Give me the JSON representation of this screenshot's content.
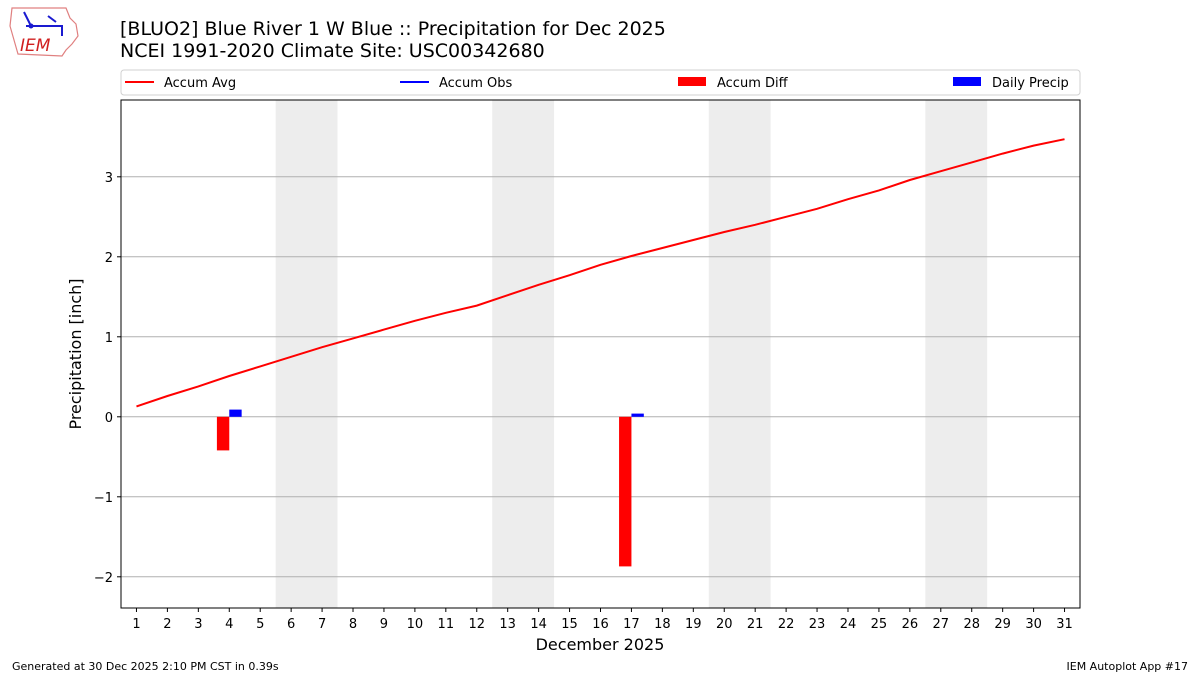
{
  "logo_text": "IEM",
  "footer": {
    "left": "Generated at 30 Dec 2025 2:10 PM CST in 0.39s",
    "right": "IEM Autoplot App #17"
  },
  "chart_data": {
    "type": "bar",
    "title": "[BLUO2] Blue River 1 W Blue :: Precipitation for Dec 2025",
    "subtitle": "NCEI 1991-2020 Climate Site: USC00342680",
    "xlabel": "December 2025",
    "ylabel": "Precipitation [inch]",
    "xlim": [
      0.5,
      31.5
    ],
    "ylim": [
      -2.39,
      3.96
    ],
    "yticks": [
      -2,
      -1,
      0,
      1,
      2,
      3
    ],
    "ytick_labels": [
      "−2",
      "−1",
      "0",
      "1",
      "2",
      "3"
    ],
    "x": [
      1,
      2,
      3,
      4,
      5,
      6,
      7,
      8,
      9,
      10,
      11,
      12,
      13,
      14,
      15,
      16,
      17,
      18,
      19,
      20,
      21,
      22,
      23,
      24,
      25,
      26,
      27,
      28,
      29,
      30,
      31
    ],
    "xtick_labels": [
      "1",
      "2",
      "3",
      "4",
      "5",
      "6",
      "7",
      "8",
      "9",
      "10",
      "11",
      "12",
      "13",
      "14",
      "15",
      "16",
      "17",
      "18",
      "19",
      "20",
      "21",
      "22",
      "23",
      "24",
      "25",
      "26",
      "27",
      "28",
      "29",
      "30",
      "31"
    ],
    "weekend_shading": [
      [
        5.5,
        7.5
      ],
      [
        12.5,
        14.5
      ],
      [
        19.5,
        21.5
      ],
      [
        26.5,
        28.5
      ]
    ],
    "grid": "y",
    "legend_placement": "top",
    "legend": [
      {
        "label": "Accum Avg",
        "kind": "line",
        "color": "#ff0000"
      },
      {
        "label": "Accum Obs",
        "kind": "line",
        "color": "#0000ff"
      },
      {
        "label": "Accum Diff",
        "kind": "bar",
        "color": "#ff0000"
      },
      {
        "label": "Daily Precip",
        "kind": "bar",
        "color": "#0000ff"
      }
    ],
    "series": [
      {
        "name": "Accum Avg",
        "type": "line",
        "color": "#ff0000",
        "values": [
          0.13,
          0.26,
          0.38,
          0.51,
          0.63,
          0.75,
          0.87,
          0.98,
          1.09,
          1.2,
          1.3,
          1.39,
          1.52,
          1.65,
          1.77,
          1.9,
          2.01,
          2.11,
          2.21,
          2.31,
          2.4,
          2.5,
          2.6,
          2.72,
          2.83,
          2.96,
          3.07,
          3.18,
          3.29,
          3.39,
          3.47
        ]
      },
      {
        "name": "Accum Diff",
        "type": "bar",
        "color": "#ff0000",
        "points": [
          {
            "x": 4,
            "y": -0.42
          },
          {
            "x": 17,
            "y": -1.87
          }
        ]
      },
      {
        "name": "Daily Precip",
        "type": "bar",
        "color": "#0000ff",
        "points": [
          {
            "x": 4,
            "y": 0.09
          },
          {
            "x": 17,
            "y": 0.04
          }
        ]
      }
    ]
  }
}
